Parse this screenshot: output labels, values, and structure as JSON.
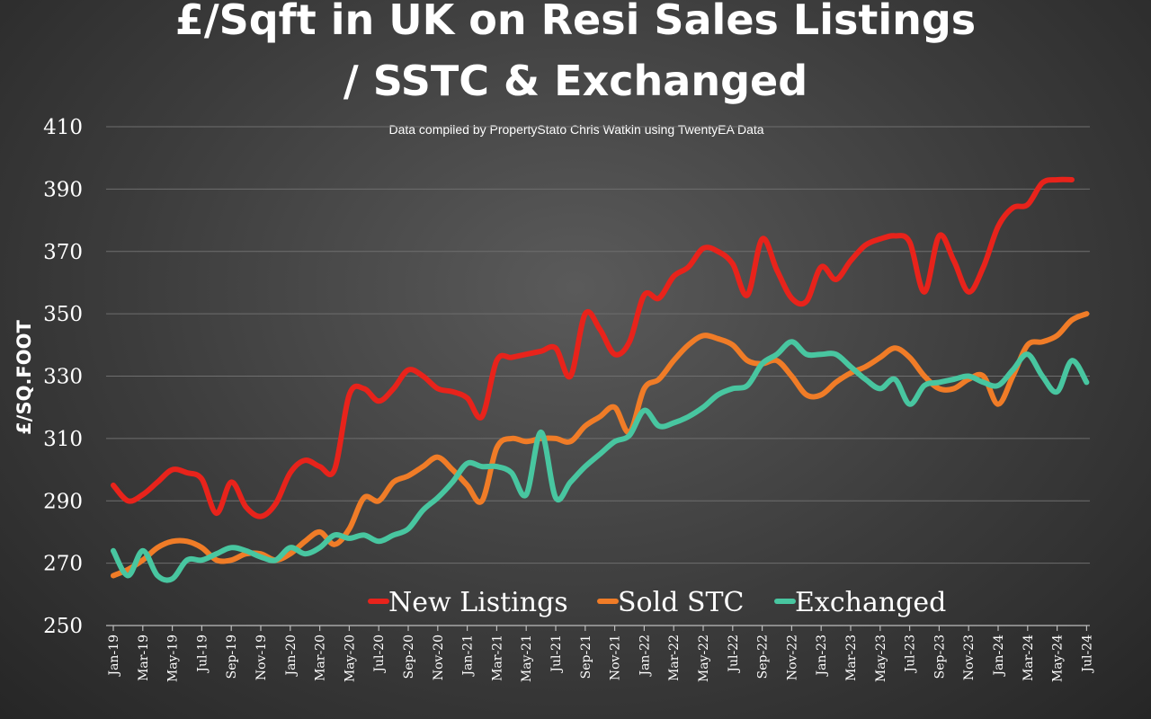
{
  "chart_data": {
    "type": "line",
    "title_lines": [
      "£/Sqft in UK on Resi Sales  Listings",
      "/ SSTC & Exchanged"
    ],
    "subtitle": "Data compiled by PropertyStato Chris Watkin using TwentyEA Data",
    "ylabel": "£/SQ.FOOT",
    "xlabel": "",
    "ylim": [
      250,
      410
    ],
    "yticks": [
      250,
      270,
      290,
      310,
      330,
      350,
      370,
      390,
      410
    ],
    "grid": true,
    "legend_position": "bottom-inside",
    "x_tick_labels": [
      "Jan-19",
      "Mar-19",
      "May-19",
      "Jul-19",
      "Sep-19",
      "Nov-19",
      "Jan-20",
      "Mar-20",
      "May-20",
      "Jul-20",
      "Sep-20",
      "Nov-20",
      "Jan-21",
      "Mar-21",
      "May-21",
      "Jul-21",
      "Sep-21",
      "Nov-21",
      "Jan-22",
      "Mar-22",
      "May-22",
      "Jul-22",
      "Sep-22",
      "Nov-22",
      "Jan-23",
      "Mar-23",
      "May-23",
      "Jul-23",
      "Sep-23",
      "Nov-23",
      "Jan-24",
      "Mar-24",
      "May-24",
      "Jul-24"
    ],
    "x_start": "Jan-19",
    "series": [
      {
        "name": "New Listings",
        "color": "#e8231b",
        "values": [
          295,
          290,
          292,
          296,
          300,
          299,
          297,
          286,
          296,
          288,
          285,
          289,
          299,
          303,
          301,
          300,
          324,
          326,
          322,
          326,
          332,
          330,
          326,
          325,
          323,
          317,
          335,
          336,
          337,
          338,
          339,
          330,
          350,
          345,
          337,
          341,
          356,
          355,
          362,
          365,
          371,
          370,
          366,
          356,
          374,
          364,
          355,
          354,
          365,
          361,
          367,
          372,
          374,
          375,
          373,
          357,
          375,
          367,
          357,
          365,
          378,
          384,
          385,
          392,
          393,
          393
        ],
        "end_index": 65
      },
      {
        "name": "Sold STC",
        "color": "#f07c27",
        "values": [
          266,
          268,
          271,
          275,
          277,
          277,
          275,
          271,
          271,
          273,
          273,
          271,
          273,
          277,
          280,
          276,
          281,
          291,
          290,
          296,
          298,
          301,
          304,
          300,
          295,
          290,
          307,
          310,
          309,
          310,
          310,
          309,
          314,
          317,
          320,
          312,
          326,
          329,
          335,
          340,
          343,
          342,
          340,
          335,
          334,
          335,
          330,
          324,
          324,
          328,
          331,
          333,
          336,
          339,
          336,
          330,
          326,
          326,
          329,
          330,
          321,
          330,
          340,
          341,
          343,
          348,
          350
        ],
        "end_index": 66
      },
      {
        "name": "Exchanged",
        "color": "#48c6a0",
        "values": [
          274,
          266,
          274,
          266,
          265,
          271,
          271,
          273,
          275,
          274,
          272,
          271,
          275,
          273,
          275,
          279,
          278,
          279,
          277,
          279,
          281,
          287,
          291,
          296,
          302,
          301,
          301,
          299,
          292,
          312,
          291,
          296,
          301,
          305,
          309,
          311,
          319,
          314,
          315,
          317,
          320,
          324,
          326,
          327,
          334,
          337,
          341,
          337,
          337,
          337,
          333,
          329,
          326,
          329,
          321,
          327,
          328,
          329,
          330,
          328,
          327,
          332,
          337,
          330,
          325,
          335,
          328
        ],
        "end_index": 66
      }
    ]
  }
}
